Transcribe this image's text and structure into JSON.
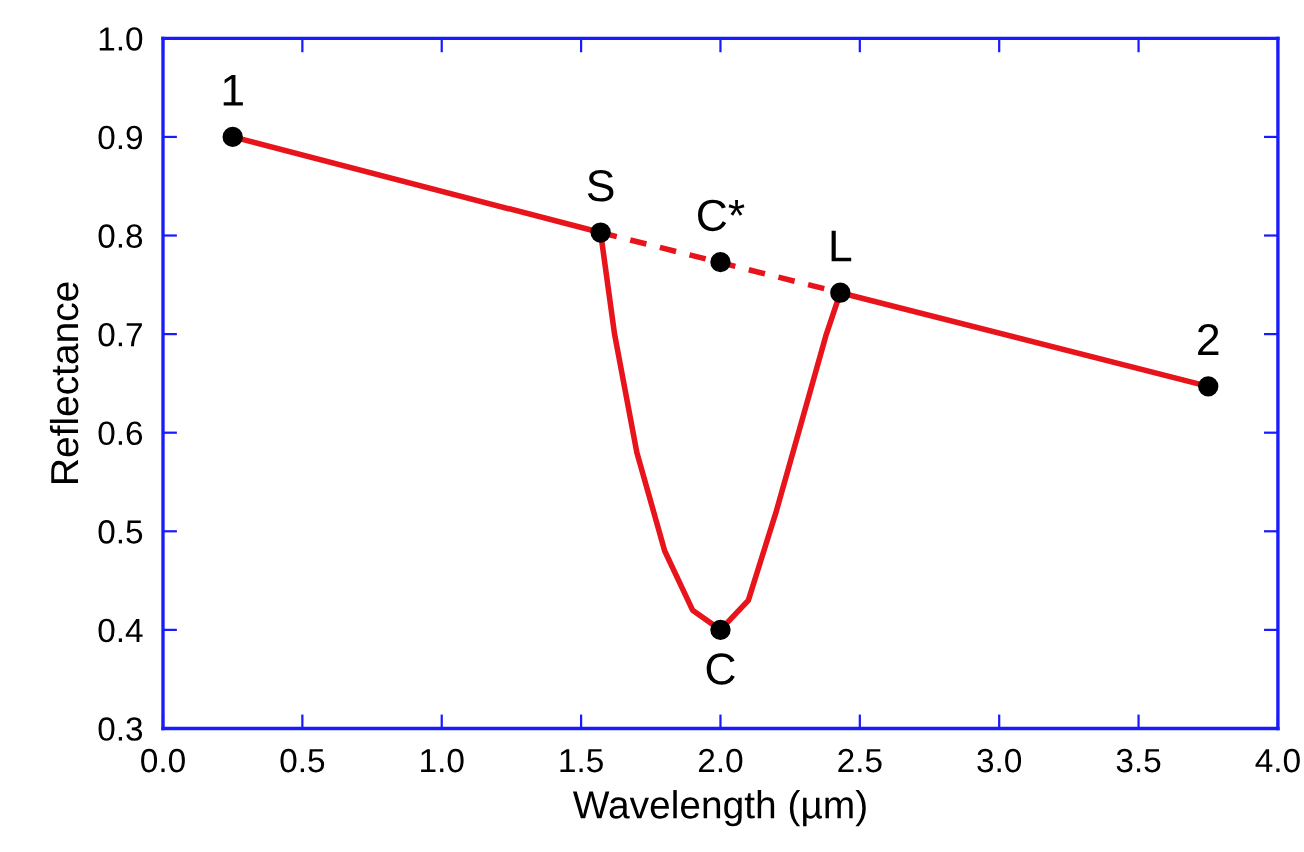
{
  "chart_data": {
    "type": "line",
    "xlabel": "Wavelength (µm)",
    "ylabel": "Reflectance",
    "xlim": [
      0.0,
      4.0
    ],
    "ylim": [
      0.3,
      1.0
    ],
    "xticks": [
      {
        "value": 0,
        "label": "0.0"
      },
      0.5,
      {
        "value": 1,
        "label": "1.0"
      },
      1.5,
      {
        "value": 2,
        "label": "2.0"
      },
      2.5,
      {
        "value": 3,
        "label": "3.0"
      },
      3.5,
      {
        "value": 4,
        "label": "4.0"
      }
    ],
    "yticks": [
      0.3,
      0.4,
      0.5,
      0.6,
      0.7,
      0.8,
      0.9,
      {
        "value": 1,
        "label": "1.0"
      }
    ],
    "grid": false,
    "legend": false,
    "series": [
      {
        "color": "#e8141c",
        "line_style": "solid",
        "marker": "none",
        "x": [
          0.25,
          1.57
        ],
        "values": [
          0.9,
          0.803
        ]
      },
      {
        "color": "#e8141c",
        "line_style": "dashed",
        "marker": "none",
        "x": [
          1.57,
          2.43
        ],
        "values": [
          0.803,
          0.742
        ]
      },
      {
        "color": "#e8141c",
        "line_style": "solid",
        "marker": "none",
        "x": [
          2.43,
          3.75
        ],
        "values": [
          0.742,
          0.647
        ]
      },
      {
        "color": "#e8141c",
        "line_style": "solid",
        "marker": "none",
        "x": [
          1.57,
          1.62,
          1.7,
          1.8,
          1.9,
          2.0,
          2.1,
          2.2,
          2.3,
          2.38,
          2.43
        ],
        "values": [
          0.803,
          0.7,
          0.58,
          0.48,
          0.42,
          0.4,
          0.43,
          0.52,
          0.62,
          0.7,
          0.742
        ]
      },
      {
        "type": "scatter",
        "color": "#000000",
        "marker": "circle",
        "x": [
          0.25,
          1.57,
          2.0,
          2.43,
          3.75,
          2.0
        ],
        "values": [
          0.9,
          0.803,
          0.773,
          0.742,
          0.647,
          0.4
        ]
      }
    ],
    "annotations": [
      {
        "text": "1",
        "x": 0.25,
        "y": 0.9
      },
      {
        "text": "S",
        "x": 1.57,
        "y": 0.803
      },
      {
        "text": "C*",
        "x": 2.0,
        "y": 0.773
      },
      {
        "text": "L",
        "x": 2.43,
        "y": 0.742
      },
      {
        "text": "2",
        "x": 3.75,
        "y": 0.647
      },
      {
        "text": "C",
        "x": 2.0,
        "y": 0.4
      }
    ]
  }
}
